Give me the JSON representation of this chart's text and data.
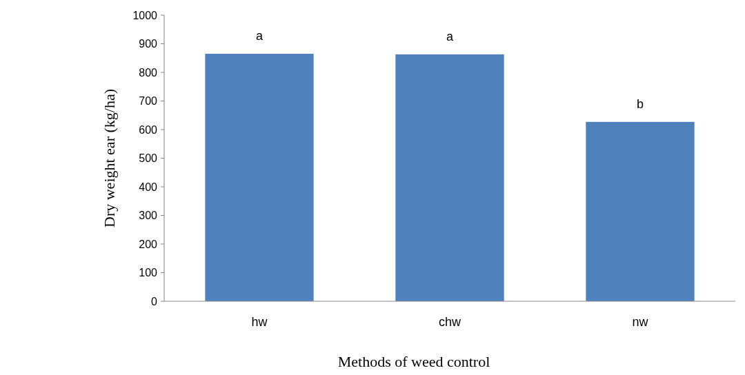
{
  "chart_data": {
    "type": "bar",
    "xlabel": "Methods of weed control",
    "ylabel": "Dry weight ear (kg/ha)",
    "categories": [
      "hw",
      "chw",
      "nw"
    ],
    "values": [
      865,
      863,
      627
    ],
    "color": "#4f81bd",
    "ylim": [
      0,
      1000
    ],
    "yticks": [
      0,
      100,
      200,
      300,
      400,
      500,
      600,
      700,
      800,
      900,
      1000
    ],
    "grid": false,
    "annotations": [
      {
        "text": "a",
        "x": "hw",
        "y": 865
      },
      {
        "text": "a",
        "x": "chw",
        "y": 863
      },
      {
        "text": "b",
        "x": "nw",
        "y": 627
      }
    ]
  }
}
